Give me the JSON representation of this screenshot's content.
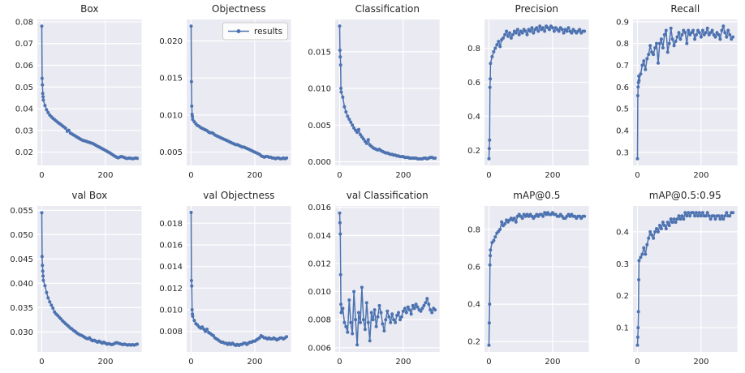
{
  "style": {
    "line_color": "#4c72b0",
    "axes_background": "#eaeaf2",
    "grid_color": "#ffffff",
    "text_color": "#262626",
    "legend_border": "#cccccc",
    "figure_background": "#ffffff"
  },
  "chart_data": {
    "type": "line",
    "series_legend": "results",
    "grid": true,
    "legend_position": "upper-right-of-objectness-panel",
    "xlim": [
      -14,
      314
    ],
    "xticks": [
      0,
      200
    ],
    "x": [
      0,
      1,
      2,
      3,
      4,
      5,
      10,
      15,
      20,
      25,
      30,
      35,
      40,
      45,
      50,
      55,
      60,
      65,
      70,
      75,
      80,
      85,
      90,
      95,
      100,
      105,
      110,
      115,
      120,
      125,
      130,
      135,
      140,
      145,
      150,
      155,
      160,
      165,
      170,
      175,
      180,
      185,
      190,
      195,
      200,
      205,
      210,
      215,
      220,
      225,
      230,
      235,
      240,
      245,
      250,
      255,
      260,
      265,
      270,
      275,
      280,
      285,
      290,
      295,
      300
    ],
    "charts": [
      {
        "title": "Box",
        "ylim": [
          0.0139,
          0.0811
        ],
        "yticks": [
          0.02,
          0.03,
          0.04,
          0.05,
          0.06,
          0.07,
          0.08
        ],
        "ytick_decimals": 2,
        "y": [
          0.078,
          0.054,
          0.051,
          0.047,
          0.0455,
          0.044,
          0.0415,
          0.0395,
          0.0382,
          0.0371,
          0.0363,
          0.0356,
          0.035,
          0.0344,
          0.0338,
          0.0332,
          0.0327,
          0.0321,
          0.0316,
          0.031,
          0.0296,
          0.0301,
          0.0288,
          0.0284,
          0.0279,
          0.0275,
          0.027,
          0.0266,
          0.0261,
          0.0257,
          0.0254,
          0.0252,
          0.025,
          0.0247,
          0.0245,
          0.0242,
          0.024,
          0.0236,
          0.0232,
          0.0228,
          0.0224,
          0.022,
          0.0216,
          0.0212,
          0.0208,
          0.0204,
          0.02,
          0.0196,
          0.0191,
          0.0186,
          0.0181,
          0.0177,
          0.0174,
          0.0177,
          0.018,
          0.0178,
          0.0175,
          0.0172,
          0.0171,
          0.0173,
          0.0172,
          0.017,
          0.0171,
          0.0173,
          0.0172
        ]
      },
      {
        "title": "Objectness",
        "show_legend": true,
        "ylim": [
          0.0032,
          0.0229
        ],
        "yticks": [
          0.005,
          0.01,
          0.015,
          0.02
        ],
        "ytick_decimals": 3,
        "y": [
          0.022,
          0.0145,
          0.0112,
          0.0101,
          0.0098,
          0.0094,
          0.0091,
          0.0088,
          0.0086,
          0.0085,
          0.0083,
          0.0082,
          0.0081,
          0.008,
          0.0079,
          0.0077,
          0.0076,
          0.0076,
          0.0075,
          0.0073,
          0.0072,
          0.0071,
          0.007,
          0.0069,
          0.0068,
          0.0067,
          0.0066,
          0.0065,
          0.0064,
          0.0063,
          0.0062,
          0.0061,
          0.006,
          0.006,
          0.0059,
          0.0058,
          0.0057,
          0.0057,
          0.0056,
          0.0055,
          0.0054,
          0.0053,
          0.0052,
          0.0051,
          0.005,
          0.0049,
          0.0048,
          0.0047,
          0.0045,
          0.0044,
          0.0043,
          0.0044,
          0.0044,
          0.0043,
          0.0043,
          0.0042,
          0.0042,
          0.0041,
          0.0042,
          0.0042,
          0.0041,
          0.0041,
          0.0042,
          0.0041,
          0.0042
        ]
      },
      {
        "title": "Classification",
        "ylim": [
          -0.0005,
          0.0194
        ],
        "yticks": [
          0.0,
          0.005,
          0.01,
          0.015
        ],
        "ytick_decimals": 3,
        "y": [
          0.0185,
          0.0152,
          0.0143,
          0.0132,
          0.01,
          0.0095,
          0.0088,
          0.0075,
          0.0068,
          0.0062,
          0.0058,
          0.0054,
          0.005,
          0.0046,
          0.0043,
          0.004,
          0.0044,
          0.0037,
          0.0034,
          0.0031,
          0.0028,
          0.0025,
          0.003,
          0.0023,
          0.0021,
          0.0019,
          0.0018,
          0.0017,
          0.0016,
          0.0017,
          0.0015,
          0.0014,
          0.0013,
          0.0012,
          0.0012,
          0.0011,
          0.001,
          0.001,
          0.0009,
          0.0009,
          0.0008,
          0.0008,
          0.0007,
          0.0007,
          0.0007,
          0.0006,
          0.0006,
          0.0006,
          0.0005,
          0.0005,
          0.0005,
          0.0005,
          0.0005,
          0.0004,
          0.0004,
          0.0004,
          0.0004,
          0.0005,
          0.0005,
          0.0004,
          0.0005,
          0.0006,
          0.0006,
          0.0005,
          0.0005
        ]
      },
      {
        "title": "Precision",
        "ylim": [
          0.111,
          0.969
        ],
        "yticks": [
          0.2,
          0.4,
          0.6,
          0.8
        ],
        "ytick_decimals": 1,
        "y": [
          0.15,
          0.21,
          0.26,
          0.57,
          0.62,
          0.71,
          0.75,
          0.78,
          0.8,
          0.82,
          0.84,
          0.81,
          0.85,
          0.86,
          0.88,
          0.9,
          0.87,
          0.89,
          0.86,
          0.88,
          0.9,
          0.89,
          0.91,
          0.88,
          0.9,
          0.89,
          0.91,
          0.9,
          0.88,
          0.91,
          0.9,
          0.92,
          0.89,
          0.91,
          0.92,
          0.9,
          0.93,
          0.91,
          0.92,
          0.9,
          0.93,
          0.92,
          0.91,
          0.93,
          0.92,
          0.9,
          0.92,
          0.91,
          0.9,
          0.92,
          0.91,
          0.89,
          0.91,
          0.9,
          0.92,
          0.9,
          0.89,
          0.91,
          0.9,
          0.89,
          0.9,
          0.91,
          0.89,
          0.9,
          0.9
        ]
      },
      {
        "title": "Recall",
        "ylim": [
          0.2395,
          0.9105
        ],
        "yticks": [
          0.3,
          0.4,
          0.5,
          0.6,
          0.7,
          0.8,
          0.9
        ],
        "ytick_decimals": 1,
        "y": [
          0.27,
          0.56,
          0.6,
          0.62,
          0.65,
          0.63,
          0.66,
          0.7,
          0.72,
          0.68,
          0.73,
          0.75,
          0.79,
          0.76,
          0.75,
          0.78,
          0.8,
          0.71,
          0.8,
          0.82,
          0.78,
          0.84,
          0.86,
          0.76,
          0.8,
          0.87,
          0.82,
          0.79,
          0.81,
          0.83,
          0.85,
          0.82,
          0.84,
          0.86,
          0.85,
          0.8,
          0.86,
          0.84,
          0.85,
          0.86,
          0.82,
          0.84,
          0.86,
          0.85,
          0.83,
          0.86,
          0.84,
          0.85,
          0.87,
          0.84,
          0.85,
          0.86,
          0.84,
          0.83,
          0.85,
          0.84,
          0.82,
          0.86,
          0.88,
          0.85,
          0.83,
          0.86,
          0.84,
          0.82,
          0.83
        ]
      },
      {
        "title": "val Box",
        "ylim": [
          0.0259,
          0.0559
        ],
        "yticks": [
          0.03,
          0.035,
          0.04,
          0.045,
          0.05,
          0.055
        ],
        "ytick_decimals": 3,
        "y": [
          0.0545,
          0.0455,
          0.0437,
          0.0425,
          0.0415,
          0.0406,
          0.0395,
          0.0381,
          0.037,
          0.0362,
          0.0355,
          0.0349,
          0.0341,
          0.0337,
          0.0334,
          0.033,
          0.0327,
          0.0323,
          0.032,
          0.0317,
          0.0314,
          0.0311,
          0.0308,
          0.0306,
          0.0303,
          0.0301,
          0.0298,
          0.0296,
          0.0294,
          0.0293,
          0.0291,
          0.0289,
          0.0287,
          0.0286,
          0.0288,
          0.0284,
          0.0282,
          0.0283,
          0.0281,
          0.0279,
          0.0281,
          0.0279,
          0.0277,
          0.0279,
          0.0277,
          0.0275,
          0.0276,
          0.0275,
          0.0274,
          0.0275,
          0.0277,
          0.0278,
          0.0277,
          0.0276,
          0.0275,
          0.0274,
          0.0275,
          0.0274,
          0.0273,
          0.0274,
          0.0273,
          0.0274,
          0.0273,
          0.0274,
          0.0275
        ]
      },
      {
        "title": "val Objectness",
        "ylim": [
          0.0061,
          0.0196
        ],
        "yticks": [
          0.008,
          0.01,
          0.012,
          0.014,
          0.016,
          0.018
        ],
        "ytick_decimals": 3,
        "y": [
          0.019,
          0.0127,
          0.0122,
          0.01,
          0.0096,
          0.0094,
          0.009,
          0.0087,
          0.0086,
          0.0084,
          0.0083,
          0.0084,
          0.0082,
          0.008,
          0.0082,
          0.0079,
          0.0078,
          0.0077,
          0.0076,
          0.0074,
          0.0073,
          0.0072,
          0.0071,
          0.007,
          0.007,
          0.0069,
          0.0069,
          0.0068,
          0.0069,
          0.0068,
          0.0069,
          0.0068,
          0.0067,
          0.0068,
          0.0067,
          0.0068,
          0.0068,
          0.0069,
          0.0069,
          0.0068,
          0.0069,
          0.007,
          0.007,
          0.0071,
          0.0071,
          0.0072,
          0.0073,
          0.0074,
          0.0076,
          0.0075,
          0.0074,
          0.0074,
          0.0073,
          0.0074,
          0.0073,
          0.0073,
          0.0074,
          0.0073,
          0.0072,
          0.0073,
          0.0074,
          0.0074,
          0.0073,
          0.0074,
          0.0075
        ]
      },
      {
        "title": "val Classification",
        "ylim": [
          0.0057,
          0.0161
        ],
        "yticks": [
          0.006,
          0.008,
          0.01,
          0.012,
          0.014,
          0.016
        ],
        "ytick_decimals": 3,
        "y": [
          0.0156,
          0.0149,
          0.0141,
          0.0112,
          0.0091,
          0.0085,
          0.0088,
          0.0078,
          0.0075,
          0.0071,
          0.0094,
          0.0078,
          0.007,
          0.01,
          0.008,
          0.0062,
          0.0085,
          0.0078,
          0.0103,
          0.008,
          0.0073,
          0.0092,
          0.0078,
          0.0065,
          0.0085,
          0.008,
          0.0087,
          0.0075,
          0.0082,
          0.009,
          0.0085,
          0.0077,
          0.0072,
          0.008,
          0.0086,
          0.0082,
          0.0078,
          0.0084,
          0.008,
          0.0078,
          0.0083,
          0.0085,
          0.008,
          0.0082,
          0.0086,
          0.0088,
          0.0085,
          0.0089,
          0.0087,
          0.0084,
          0.009,
          0.0088,
          0.0091,
          0.0089,
          0.0087,
          0.0086,
          0.0088,
          0.009,
          0.0092,
          0.0095,
          0.0091,
          0.0087,
          0.0085,
          0.0088,
          0.0087
        ]
      },
      {
        "title": "mAP@0.5",
        "ylim": [
          0.1445,
          0.9255
        ],
        "yticks": [
          0.2,
          0.4,
          0.6,
          0.8
        ],
        "ytick_decimals": 1,
        "y": [
          0.18,
          0.3,
          0.4,
          0.61,
          0.66,
          0.69,
          0.73,
          0.74,
          0.76,
          0.78,
          0.79,
          0.8,
          0.84,
          0.82,
          0.83,
          0.85,
          0.84,
          0.85,
          0.86,
          0.85,
          0.86,
          0.84,
          0.87,
          0.88,
          0.87,
          0.86,
          0.88,
          0.87,
          0.88,
          0.87,
          0.88,
          0.87,
          0.86,
          0.87,
          0.88,
          0.87,
          0.88,
          0.88,
          0.87,
          0.89,
          0.88,
          0.89,
          0.88,
          0.88,
          0.89,
          0.88,
          0.88,
          0.87,
          0.87,
          0.88,
          0.87,
          0.86,
          0.86,
          0.87,
          0.88,
          0.87,
          0.88,
          0.87,
          0.87,
          0.86,
          0.87,
          0.87,
          0.86,
          0.87,
          0.87
        ]
      },
      {
        "title": "mAP@0.5:0.95",
        "ylim": [
          0.024,
          0.481
        ],
        "yticks": [
          0.1,
          0.2,
          0.3,
          0.4
        ],
        "ytick_decimals": 1,
        "y": [
          0.045,
          0.07,
          0.1,
          0.15,
          0.25,
          0.31,
          0.32,
          0.33,
          0.35,
          0.33,
          0.36,
          0.38,
          0.4,
          0.39,
          0.38,
          0.4,
          0.41,
          0.4,
          0.42,
          0.41,
          0.43,
          0.42,
          0.41,
          0.43,
          0.42,
          0.44,
          0.43,
          0.44,
          0.43,
          0.44,
          0.45,
          0.44,
          0.45,
          0.44,
          0.46,
          0.45,
          0.46,
          0.45,
          0.46,
          0.46,
          0.45,
          0.46,
          0.45,
          0.46,
          0.45,
          0.46,
          0.45,
          0.45,
          0.46,
          0.45,
          0.44,
          0.45,
          0.45,
          0.44,
          0.45,
          0.45,
          0.44,
          0.45,
          0.44,
          0.45,
          0.46,
          0.45,
          0.45,
          0.46,
          0.46
        ]
      }
    ]
  }
}
